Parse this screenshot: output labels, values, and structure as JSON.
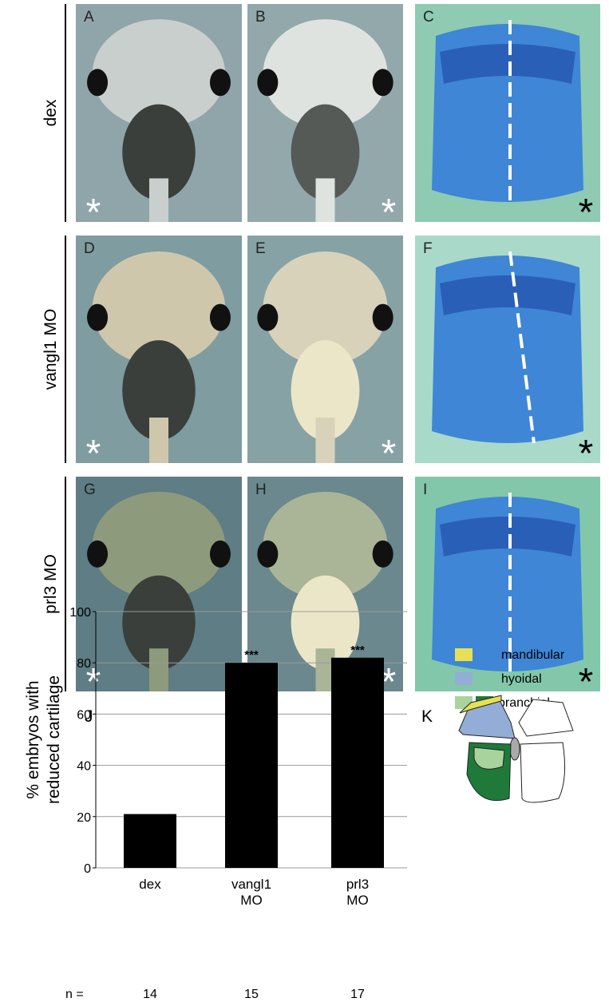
{
  "rows": [
    {
      "label": "dex"
    },
    {
      "label": "vangl1 MO"
    },
    {
      "label": "prl3 MO"
    }
  ],
  "panels": [
    {
      "letter": "A"
    },
    {
      "letter": "B"
    },
    {
      "letter": "C"
    },
    {
      "letter": "D"
    },
    {
      "letter": "E"
    },
    {
      "letter": "F"
    },
    {
      "letter": "G"
    },
    {
      "letter": "H"
    },
    {
      "letter": "I"
    }
  ],
  "asterisk": "*",
  "chart_data": {
    "type": "bar",
    "panel_label": "J",
    "ylabel": [
      "% embryos with",
      "reduced cartilage"
    ],
    "categories": [
      "dex",
      "vangl1 MO",
      "prl3 MO"
    ],
    "values": [
      21,
      80,
      82
    ],
    "significance": [
      null,
      "***",
      "***"
    ],
    "color": "#000000",
    "ylim": [
      0,
      100
    ],
    "yticks": [
      0,
      20,
      40,
      60,
      80,
      100
    ],
    "grid": true,
    "n_label": "n =",
    "n": [
      14,
      15,
      17
    ]
  },
  "diagram": {
    "panel_label": "K",
    "legend": [
      {
        "label": "mandibular",
        "colors": [
          "#e6e052"
        ]
      },
      {
        "label": "hyoidal",
        "colors": [
          "#93add6"
        ]
      },
      {
        "label": "branchial",
        "colors": [
          "#a9d39c",
          "#1f7a3a"
        ]
      }
    ]
  }
}
